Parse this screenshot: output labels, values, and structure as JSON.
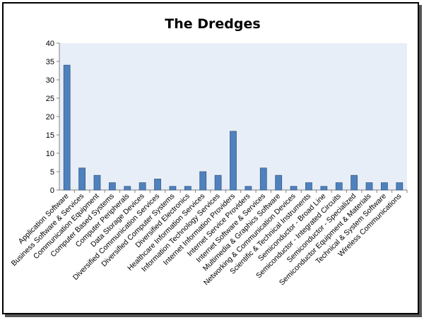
{
  "chart_data": {
    "type": "bar",
    "title": "The Dredges",
    "xlabel": "",
    "ylabel": "",
    "ylim": [
      0,
      40
    ],
    "yticks": [
      0,
      5,
      10,
      15,
      20,
      25,
      30,
      35,
      40
    ],
    "grid": false,
    "legend": "none",
    "colors": {
      "bar": "#4f81bd",
      "bar_edge": "#385d8a",
      "plot_bg": "#e8eef7"
    },
    "categories": [
      "Application Software",
      "Business Software & Services",
      "Communication Equipment",
      "Computer Based Systems",
      "Computer Peripherals",
      "Data Storage Devices",
      "Diversified Communication Services",
      "Diversified Computer Systems",
      "Diversified Electronics",
      "Healthcare Information Services",
      "Information Technology Services",
      "Internet Information Providers",
      "Internet Service Providers",
      "Internet Software & Services",
      "Multimedia & Graphics Software",
      "Networking & Communication Devices",
      "Scientific & Technical Instruments",
      "Semiconductor - Broad Line",
      "Semiconductor - Integrated Circuits",
      "Semiconductor - Specialized",
      "Semiconductor Equipment & Materials",
      "Technical & System Software",
      "Wireless Communications"
    ],
    "values": [
      34,
      6,
      4,
      2,
      1,
      2,
      3,
      1,
      1,
      5,
      4,
      16,
      1,
      6,
      4,
      1,
      2,
      1,
      2,
      4,
      2,
      2,
      2
    ]
  }
}
